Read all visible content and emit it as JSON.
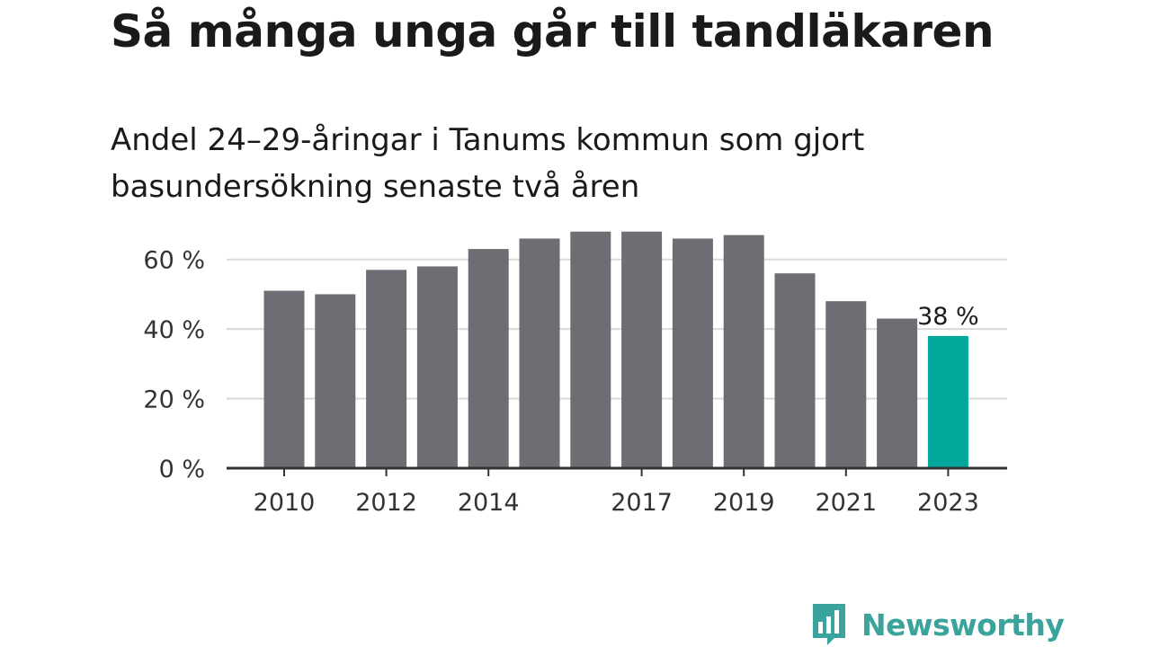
{
  "title": "Så många unga går till tandläkaren",
  "subtitle": "Andel 24–29-åringar i Tanums kommun som gjort basundersökning senaste två åren",
  "brand": {
    "name": "Newsworthy",
    "icon": "bar-chart-speech-bubble-icon",
    "color": "#3aa39c"
  },
  "chart_data": {
    "type": "bar",
    "categories": [
      "2010",
      "2011",
      "2012",
      "2013",
      "2014",
      "2015",
      "2016",
      "2017",
      "2018",
      "2019",
      "2020",
      "2021",
      "2022",
      "2023"
    ],
    "values": [
      51,
      50,
      57,
      58,
      63,
      66,
      68,
      68,
      66,
      67,
      56,
      48,
      43,
      38
    ],
    "x_tick_labels": [
      "2010",
      "2012",
      "2014",
      "2017",
      "2019",
      "2021",
      "2023"
    ],
    "y_ticks": [
      0,
      20,
      40,
      60
    ],
    "y_tick_labels": [
      "0 %",
      "20 %",
      "40 %",
      "60 %"
    ],
    "ylim": [
      0,
      70
    ],
    "grid": true,
    "highlight": {
      "category": "2023",
      "label": "38 %"
    },
    "colors": {
      "bar": "#6e6d73",
      "highlight": "#00a79a",
      "grid": "#d9d9d9",
      "axis": "#333333"
    },
    "xlabel": "",
    "ylabel": ""
  }
}
